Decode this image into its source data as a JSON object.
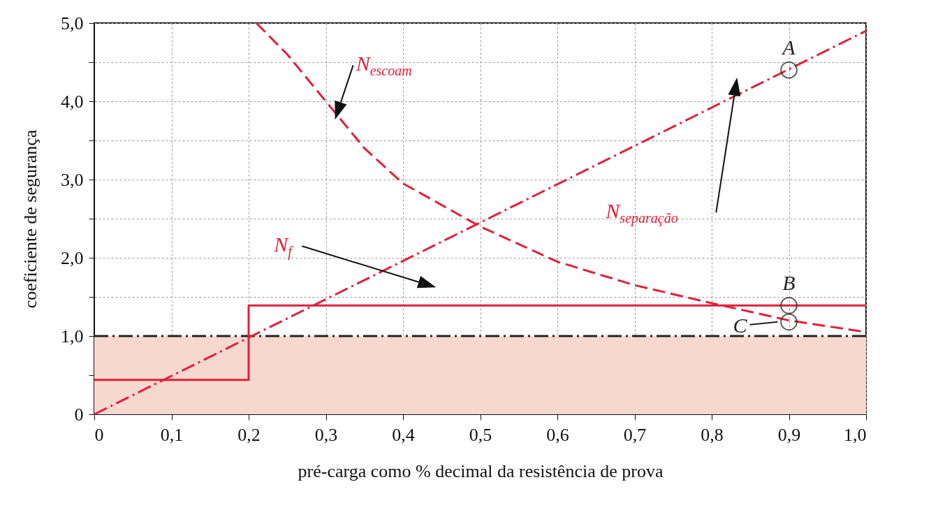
{
  "chart_data": {
    "type": "line",
    "xlabel": "pré-carga como % decimal da resistência de prova",
    "ylabel": "coeficiente de segurança",
    "xlim": [
      0,
      1.0
    ],
    "ylim": [
      0,
      5.0
    ],
    "xticks": [
      0,
      {
        "value": 0.1,
        "label": "0,1"
      },
      {
        "value": 0.2,
        "label": "0,2"
      },
      {
        "value": 0.3,
        "label": "0,3"
      },
      {
        "value": 0.4,
        "label": "0,4"
      },
      {
        "value": 0.5,
        "label": "0,5"
      },
      {
        "value": 0.6,
        "label": "0,6"
      },
      {
        "value": 0.7,
        "label": "0,7"
      },
      {
        "value": 0.8,
        "label": "0,8"
      },
      {
        "value": 0.9,
        "label": "0,9"
      },
      {
        "value": 1.0,
        "label": "1,0"
      }
    ],
    "yticks": [
      0,
      {
        "value": 0.5,
        "label": null
      },
      {
        "value": 1.0,
        "label": "1,0"
      },
      {
        "value": 1.5,
        "label": null
      },
      {
        "value": 2.0,
        "label": "2,0"
      },
      {
        "value": 2.5,
        "label": null
      },
      {
        "value": 3.0,
        "label": "3,0"
      },
      {
        "value": 3.5,
        "label": null
      },
      {
        "value": 4.0,
        "label": "4,0"
      },
      {
        "value": 4.5,
        "label": null
      },
      {
        "value": 5.0,
        "label": "5,0"
      }
    ],
    "grid": true,
    "series": [
      {
        "name": "N$_{separação}$",
        "color": "#e0203a",
        "line_style": "dashdot",
        "x": [
          0,
          1.0
        ],
        "values": [
          0,
          4.9
        ]
      },
      {
        "name": "N$_{escoam}$",
        "color": "#e0203a",
        "line_style": "dashed",
        "x": [
          0.21,
          0.25,
          0.3,
          0.35,
          0.4,
          0.5,
          0.6,
          0.7,
          0.8,
          0.9,
          1.0
        ],
        "values": [
          5.0,
          4.6,
          4.0,
          3.4,
          2.95,
          2.4,
          1.95,
          1.65,
          1.42,
          1.2,
          1.05
        ]
      },
      {
        "name": "N$_{f}$",
        "type": "step",
        "color": "#e0203a",
        "line_style": "solid",
        "x": [
          0,
          0.2,
          1.0
        ],
        "values": [
          0.44,
          1.39,
          1.39
        ]
      },
      {
        "type": "scatter",
        "color": "#222222",
        "marker": "circle",
        "x": [
          0.9,
          0.9,
          0.9
        ],
        "values": [
          4.4,
          1.39,
          1.18
        ],
        "value_labels": [
          "A",
          "B",
          "C"
        ]
      }
    ],
    "ref_lines": [
      {
        "axis": "y",
        "value": 1.0,
        "color": "#222222",
        "line_style": "dashdot"
      }
    ],
    "bands": [
      {
        "axis": "y",
        "from": 0,
        "to": 1.0,
        "color": "#f7d8ce"
      }
    ]
  }
}
